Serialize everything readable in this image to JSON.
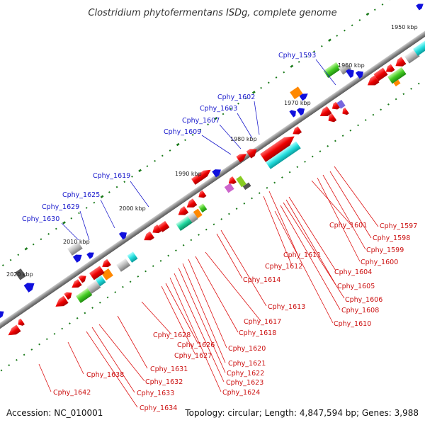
{
  "title": "Clostridium phytofermentans ISDg, complete genome",
  "footer": {
    "accession": "Accession: NC_010001",
    "summary": "Topology: circular; Length: 4,847,594 bp; Genes: 3,988"
  },
  "scale_labels": [
    "1950 kbp",
    "1960 kbp",
    "1970 kbp",
    "1980 kbp",
    "1990 kbp",
    "2000 kbp",
    "2010 kbp",
    "2020 kbp"
  ],
  "labels_upper": [
    "Cphy_1593",
    "Cphy_1602",
    "Cphy_1603",
    "Cphy_1607",
    "Cphy_1609",
    "Cphy_1619",
    "Cphy_1625",
    "Cphy_1629",
    "Cphy_1630"
  ],
  "labels_lower": [
    "Cphy_1597",
    "Cphy_1598",
    "Cphy_1599",
    "Cphy_1600",
    "Cphy_1601",
    "Cphy_1604",
    "Cphy_1605",
    "Cphy_1606",
    "Cphy_1608",
    "Cphy_1610",
    "Cphy_1611",
    "Cphy_1612",
    "Cphy_1613",
    "Cphy_1614",
    "Cphy_1617",
    "Cphy_1618",
    "Cphy_1620",
    "Cphy_1621",
    "Cphy_1622",
    "Cphy_1623",
    "Cphy_1624",
    "Cphy_1626",
    "Cphy_1627",
    "Cphy_1628",
    "Cphy_1631",
    "Cphy_1632",
    "Cphy_1633",
    "Cphy_1634",
    "Cphy_1638",
    "Cphy_1642"
  ],
  "colors": {
    "upper_label": "#1a1acc",
    "lower_label": "#cc1111",
    "backbone": "#8a8a8a",
    "tick": "#1a7a1a"
  }
}
